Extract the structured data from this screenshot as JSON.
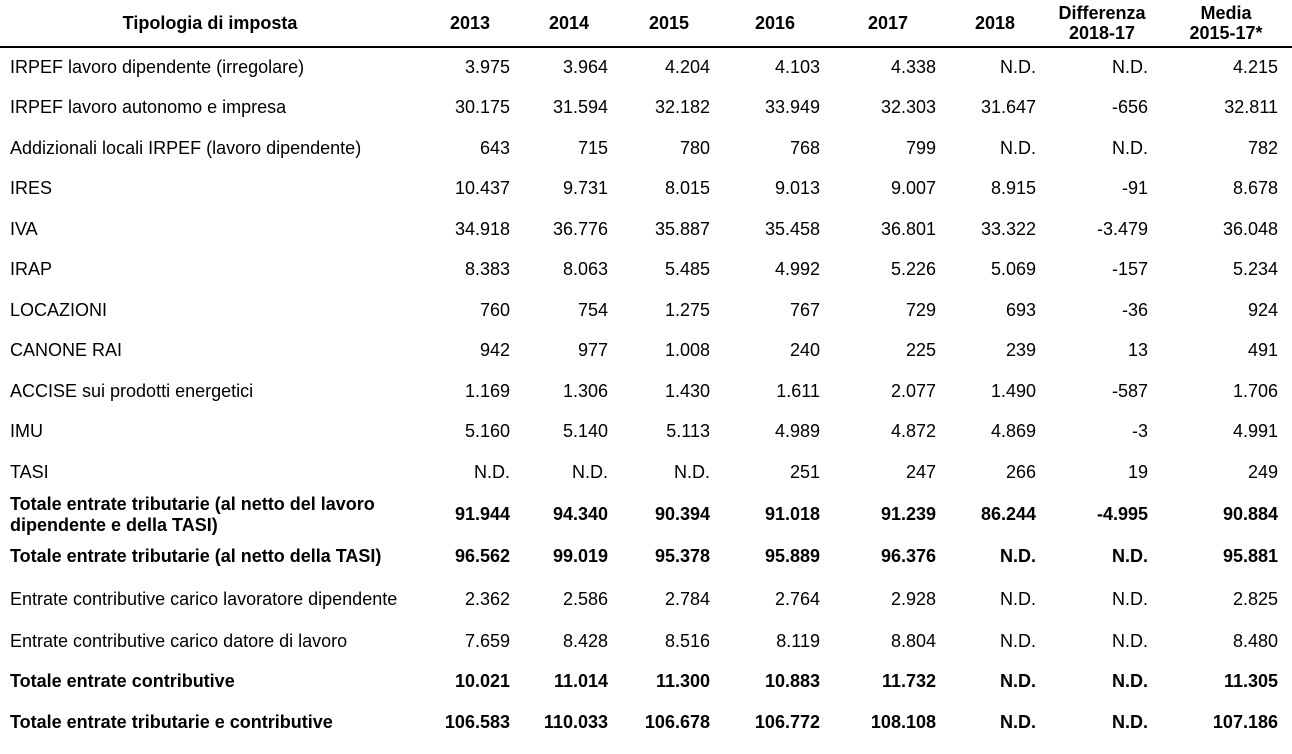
{
  "headers": [
    "Tipologia di imposta",
    "2013",
    "2014",
    "2015",
    "2016",
    "2017",
    "2018",
    "Differenza\n2018-17",
    "Media\n2015-17*"
  ],
  "rows": [
    {
      "label": "IRPEF lavoro dipendente (irregolare)",
      "values": [
        "3.975",
        "3.964",
        "4.204",
        "4.103",
        "4.338",
        "N.D.",
        "N.D.",
        "4.215"
      ],
      "bold": false
    },
    {
      "label": "IRPEF lavoro autonomo e impresa",
      "values": [
        "30.175",
        "31.594",
        "32.182",
        "33.949",
        "32.303",
        "31.647",
        "-656",
        "32.811"
      ],
      "bold": false
    },
    {
      "label": "Addizionali locali IRPEF (lavoro dipendente)",
      "values": [
        "643",
        "715",
        "780",
        "768",
        "799",
        "N.D.",
        "N.D.",
        "782"
      ],
      "bold": false
    },
    {
      "label": "IRES",
      "values": [
        "10.437",
        "9.731",
        "8.015",
        "9.013",
        "9.007",
        "8.915",
        "-91",
        "8.678"
      ],
      "bold": false
    },
    {
      "label": "IVA",
      "values": [
        "34.918",
        "36.776",
        "35.887",
        "35.458",
        "36.801",
        "33.322",
        "-3.479",
        "36.048"
      ],
      "bold": false
    },
    {
      "label": "IRAP",
      "values": [
        "8.383",
        "8.063",
        "5.485",
        "4.992",
        "5.226",
        "5.069",
        "-157",
        "5.234"
      ],
      "bold": false
    },
    {
      "label": "LOCAZIONI",
      "values": [
        "760",
        "754",
        "1.275",
        "767",
        "729",
        "693",
        "-36",
        "924"
      ],
      "bold": false
    },
    {
      "label": "CANONE RAI",
      "values": [
        "942",
        "977",
        "1.008",
        "240",
        "225",
        "239",
        "13",
        "491"
      ],
      "bold": false
    },
    {
      "label": "ACCISE sui prodotti energetici",
      "values": [
        "1.169",
        "1.306",
        "1.430",
        "1.611",
        "2.077",
        "1.490",
        "-587",
        "1.706"
      ],
      "bold": false
    },
    {
      "label": "IMU",
      "values": [
        "5.160",
        "5.140",
        "5.113",
        "4.989",
        "4.872",
        "4.869",
        "-3",
        "4.991"
      ],
      "bold": false
    },
    {
      "label": "TASI",
      "values": [
        "N.D.",
        "N.D.",
        "N.D.",
        "251",
        "247",
        "266",
        "19",
        "249"
      ],
      "bold": false
    },
    {
      "label": "Totale entrate tributarie (al netto del lavoro dipendente e della TASI)",
      "values": [
        "91.944",
        "94.340",
        "90.394",
        "91.018",
        "91.239",
        "86.244",
        "-4.995",
        "90.884"
      ],
      "bold": true
    },
    {
      "label": "Totale entrate tributarie (al netto della TASI)",
      "values": [
        "96.562",
        "99.019",
        "95.378",
        "95.889",
        "96.376",
        "N.D.",
        "N.D.",
        "95.881"
      ],
      "bold": true
    },
    {
      "label": "Entrate contributive carico lavoratore dipendente",
      "values": [
        "2.362",
        "2.586",
        "2.784",
        "2.764",
        "2.928",
        "N.D.",
        "N.D.",
        "2.825"
      ],
      "bold": false
    },
    {
      "label": "Entrate contributive carico datore di lavoro",
      "values": [
        "7.659",
        "8.428",
        "8.516",
        "8.119",
        "8.804",
        "N.D.",
        "N.D.",
        "8.480"
      ],
      "bold": false
    },
    {
      "label": "Totale entrate contributive",
      "values": [
        "10.021",
        "11.014",
        "11.300",
        "10.883",
        "11.732",
        "N.D.",
        "N.D.",
        "11.305"
      ],
      "bold": true
    },
    {
      "label": "Totale entrate tributarie e contributive",
      "values": [
        "106.583",
        "110.033",
        "106.678",
        "106.772",
        "108.108",
        "N.D.",
        "N.D.",
        "107.186"
      ],
      "bold": true
    }
  ]
}
